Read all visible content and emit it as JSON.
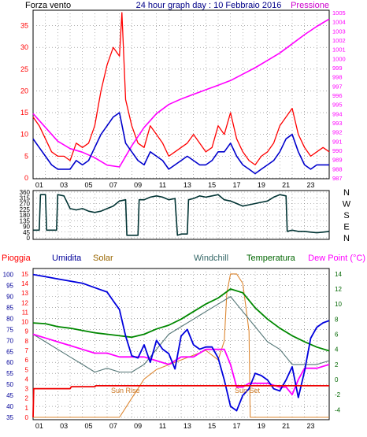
{
  "header": {
    "wind_label": "Forza vento",
    "title": "24 hour graph day : 10 Febbraio 2016",
    "pressure_label": "Pressione"
  },
  "lower_labels": {
    "rain": "Pioggia",
    "humidity": "Umidita",
    "solar": "Solar",
    "windchill": "Windchill",
    "temperature": "Temperatura",
    "dewpoint": "Dew Point (°C)",
    "sunrise": "Sun Rise",
    "sunset": "Sun Set"
  },
  "colors": {
    "wind_gust": "#ff0000",
    "wind_avg": "#0000cc",
    "pressure": "#ff00ff",
    "direction": "#003333",
    "humidity": "#0000dd",
    "solar": "#dd8833",
    "windchill": "#557777",
    "temperature": "#008800",
    "dewpoint": "#ff00ff",
    "rain": "#ee0000",
    "rain_label": "#ff0000",
    "humidity_label": "#000099",
    "solar_label": "#996600",
    "windchill_label": "#336666",
    "temperature_label": "#006600",
    "dewpoint_label": "#ff00ff"
  },
  "chart_data": [
    {
      "type": "line",
      "panel": "wind_pressure",
      "x_ticks": [
        "01",
        "03",
        "05",
        "07",
        "09",
        "11",
        "13",
        "15",
        "17",
        "19",
        "21",
        "23"
      ],
      "y_left_ticks": [
        0,
        5,
        10,
        15,
        20,
        25,
        30,
        35
      ],
      "y_left_lim": [
        0,
        38
      ],
      "y_right_ticks": [
        987,
        988,
        989,
        990,
        991,
        992,
        993,
        994,
        995,
        996,
        997,
        998,
        999,
        1000,
        1001,
        1002,
        1003,
        1004,
        1005
      ],
      "y_right_lim": [
        987,
        1005
      ],
      "series": [
        {
          "key": "gust",
          "x": [
            0,
            0.5,
            1,
            1.5,
            2,
            2.5,
            3,
            3.5,
            4,
            4.5,
            5,
            5.5,
            6,
            6.5,
            7,
            7.2,
            7.5,
            8,
            8.5,
            9,
            9.5,
            10,
            10.5,
            11,
            11.5,
            12,
            12.5,
            13,
            13.5,
            14,
            14.5,
            15,
            15.5,
            16,
            16.5,
            17,
            17.5,
            18,
            18.5,
            19,
            19.5,
            20,
            20.5,
            21,
            21.5,
            22,
            22.5,
            23,
            23.5,
            24
          ],
          "y": [
            14,
            12,
            9,
            6,
            5,
            5,
            4,
            8,
            7,
            8,
            12,
            20,
            26,
            30,
            28,
            38,
            18,
            12,
            8,
            7,
            12,
            10,
            8,
            5,
            6,
            7,
            8,
            10,
            8,
            6,
            7,
            12,
            10,
            15,
            9,
            6,
            4,
            3,
            5,
            6,
            8,
            12,
            14,
            16,
            10,
            7,
            5,
            6,
            7,
            6
          ]
        },
        {
          "key": "avg",
          "x": [
            0,
            0.5,
            1,
            1.5,
            2,
            2.5,
            3,
            3.5,
            4,
            4.5,
            5,
            5.5,
            6,
            6.5,
            7,
            7.5,
            8,
            8.5,
            9,
            9.5,
            10,
            10.5,
            11,
            11.5,
            12,
            12.5,
            13,
            13.5,
            14,
            14.5,
            15,
            15.5,
            16,
            16.5,
            17,
            17.5,
            18,
            18.5,
            19,
            19.5,
            20,
            20.5,
            21,
            21.5,
            22,
            22.5,
            23,
            23.5,
            24
          ],
          "y": [
            9,
            7,
            5,
            3,
            2,
            2,
            2,
            4,
            3,
            4,
            7,
            10,
            12,
            14,
            15,
            8,
            6,
            4,
            3,
            6,
            5,
            4,
            2,
            3,
            4,
            5,
            4,
            3,
            3,
            4,
            6,
            6,
            8,
            5,
            3,
            2,
            1,
            2,
            3,
            4,
            6,
            9,
            10,
            6,
            3,
            2,
            3,
            3,
            3
          ]
        },
        {
          "key": "pressure",
          "x": [
            0,
            1,
            2,
            3,
            4,
            5,
            6,
            7,
            8,
            9,
            10,
            11,
            12,
            13,
            14,
            15,
            16,
            17,
            18,
            19,
            20,
            21,
            22,
            23,
            24
          ],
          "y": [
            994,
            992.5,
            991,
            990.2,
            989.8,
            989.2,
            988.4,
            988.2,
            990.5,
            992.5,
            994,
            995,
            995.6,
            996.1,
            996.6,
            997.1,
            997.6,
            998.3,
            999,
            999.8,
            1000.6,
            1001.6,
            1002.6,
            1003.5,
            1004.3
          ]
        }
      ]
    },
    {
      "type": "line",
      "panel": "wind_direction",
      "x_ticks": [
        "01",
        "03",
        "05",
        "07",
        "09",
        "11",
        "13",
        "15",
        "17",
        "19",
        "21",
        "23"
      ],
      "y_left_ticks": [
        0,
        45,
        90,
        135,
        180,
        225,
        270,
        315,
        360
      ],
      "y_left_lim": [
        0,
        360
      ],
      "y_right_ticks": [
        "N",
        "W",
        "S",
        "E",
        "N"
      ],
      "series": [
        {
          "key": "direction",
          "x": [
            0,
            0.5,
            0.6,
            1,
            1.1,
            1.9,
            2,
            2.5,
            3,
            3.5,
            4,
            4.5,
            5,
            5.5,
            6,
            6.5,
            7,
            7.5,
            7.6,
            8,
            8.5,
            8.6,
            9,
            9.5,
            10,
            10.5,
            11,
            11.5,
            11.7,
            12,
            12.5,
            12.6,
            13,
            13.5,
            14,
            14.5,
            15,
            15.5,
            16,
            16.5,
            17,
            17.5,
            18,
            18.5,
            19,
            19.5,
            20,
            20.5,
            20.6,
            21,
            21.5,
            22,
            22.5,
            23,
            23.5,
            24
          ],
          "y": [
            60,
            60,
            340,
            340,
            60,
            60,
            340,
            330,
            230,
            220,
            230,
            210,
            200,
            210,
            230,
            250,
            290,
            300,
            20,
            20,
            20,
            300,
            300,
            320,
            330,
            320,
            300,
            310,
            20,
            30,
            30,
            300,
            310,
            330,
            320,
            330,
            340,
            300,
            290,
            270,
            250,
            260,
            270,
            280,
            290,
            320,
            340,
            330,
            50,
            60,
            50,
            50,
            45,
            40,
            45,
            50
          ]
        }
      ]
    },
    {
      "type": "line",
      "panel": "humidity_temperature",
      "x_ticks": [
        "01",
        "03",
        "05",
        "07",
        "09",
        "11",
        "13",
        "15",
        "17",
        "19",
        "21",
        "23"
      ],
      "y_left_ticks": [
        35,
        40,
        45,
        50,
        55,
        60,
        65,
        70,
        75,
        80,
        85,
        90,
        95,
        100
      ],
      "y_left_lim": [
        35,
        102
      ],
      "y_rain_ticks": [
        0,
        1,
        2,
        3,
        4,
        5,
        6,
        7,
        8,
        9,
        10,
        11,
        12,
        13,
        14,
        15
      ],
      "y_rain_lim": [
        0,
        15.4
      ],
      "y_right_ticks": [
        -4,
        -2,
        0,
        2,
        4,
        6,
        8,
        10,
        12,
        14
      ],
      "y_right_lim": [
        -5,
        14.5
      ],
      "series": [
        {
          "key": "humidity",
          "x": [
            0,
            1,
            2,
            3,
            4,
            5,
            6,
            6.5,
            7,
            7.5,
            8,
            8.5,
            9,
            9.5,
            10,
            10.5,
            11,
            11.5,
            12,
            12.5,
            13,
            13.5,
            14,
            14.5,
            15,
            15.5,
            16,
            16.5,
            17,
            17.5,
            18,
            18.5,
            19,
            19.5,
            20,
            20.5,
            21,
            21.5,
            22,
            22.5,
            23,
            23.5,
            24
          ],
          "y": [
            100,
            99,
            98,
            97,
            96,
            94,
            92,
            88,
            84,
            72,
            63,
            62,
            68,
            60,
            70,
            66,
            64,
            57,
            72,
            75,
            68,
            66,
            67,
            67,
            62,
            52,
            40,
            38,
            45,
            48,
            55,
            54,
            52,
            48,
            47,
            52,
            58,
            44,
            56,
            71,
            76,
            78,
            79
          ]
        },
        {
          "key": "solar",
          "x": [
            0,
            5,
            7,
            7.5,
            8,
            8.5,
            9,
            10,
            11,
            12,
            13,
            14,
            15,
            15.5,
            15.7,
            16,
            16.5,
            17,
            17.5,
            17.6,
            18,
            20,
            24
          ],
          "y": [
            0,
            0,
            0,
            1,
            2,
            3,
            4,
            5,
            5.5,
            6,
            6.5,
            7,
            6,
            8,
            13,
            15,
            15,
            14,
            9,
            0,
            0,
            0,
            0
          ]
        },
        {
          "key": "windchill",
          "x": [
            0,
            1,
            2,
            3,
            4,
            5,
            6,
            7,
            8,
            9,
            10,
            11,
            12,
            13,
            14,
            15,
            16,
            17,
            18,
            19,
            20,
            21,
            22,
            23,
            24
          ],
          "y": [
            6,
            5,
            4,
            3,
            2,
            1,
            1.5,
            1,
            1,
            2,
            4,
            6,
            7,
            8,
            9,
            10,
            11,
            9,
            7,
            5,
            4,
            2,
            2,
            2,
            2.5
          ]
        },
        {
          "key": "temperature",
          "x": [
            0,
            1,
            2,
            3,
            4,
            5,
            6,
            7,
            8,
            9,
            10,
            11,
            12,
            13,
            14,
            15,
            16,
            17,
            18,
            19,
            20,
            21,
            22,
            23,
            24
          ],
          "y": [
            7.5,
            7.4,
            7,
            6.8,
            6.5,
            6.2,
            6,
            5.8,
            5.6,
            6,
            6.7,
            7.2,
            8,
            9,
            10,
            10.8,
            12,
            11.5,
            9.5,
            8,
            6.8,
            5.8,
            5,
            4.3,
            3.8
          ]
        },
        {
          "key": "dewpoint",
          "x": [
            0,
            1,
            2,
            3,
            4,
            5,
            6,
            7,
            8,
            9,
            10,
            11,
            12,
            13,
            14,
            15,
            15.5,
            16,
            16.5,
            17,
            17.5,
            18,
            19,
            20,
            20.5,
            21,
            21.5,
            22,
            23,
            24
          ],
          "y": [
            6,
            5.5,
            5,
            4.5,
            4,
            3.5,
            3.5,
            3,
            3,
            3,
            2.5,
            2,
            3,
            3,
            4,
            4,
            4,
            2,
            -1,
            -1,
            -0.5,
            -0.5,
            -0.5,
            -1,
            -1,
            -2,
            0,
            1.5,
            1.5,
            2
          ]
        },
        {
          "key": "rain",
          "x": [
            0,
            0.05,
            0.2,
            3,
            3.1,
            5,
            5.1,
            24
          ],
          "y": [
            0,
            3,
            3,
            3,
            3.2,
            3.2,
            3.3,
            3.3
          ]
        }
      ]
    }
  ]
}
